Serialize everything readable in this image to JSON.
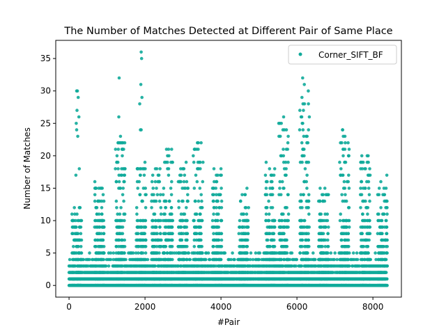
{
  "chart_data": {
    "type": "scatter",
    "title": "The Number of Matches Detected at Different Pair of Same Place",
    "xlabel": "#Pair",
    "ylabel": "Number of Matches",
    "xlim": [
      -350,
      8750
    ],
    "ylim": [
      -1.8,
      37.8
    ],
    "xticks": [
      0,
      2000,
      4000,
      6000,
      8000
    ],
    "yticks": [
      0,
      5,
      10,
      15,
      20,
      25,
      30,
      35
    ],
    "grid": false,
    "legend_position": "top-right",
    "point_count_note_visible": false,
    "series": [
      {
        "name": "Corner_SIFT_BF",
        "color": "#10aa9a",
        "x_range": [
          0,
          8350
        ],
        "dense_values": [
          0,
          1,
          2,
          3
        ],
        "cluster_centers": [
          {
            "x": 200,
            "max": 12
          },
          {
            "x": 800,
            "max": 16
          },
          {
            "x": 1350,
            "max": 23
          },
          {
            "x": 1900,
            "max": 19
          },
          {
            "x": 2300,
            "max": 19
          },
          {
            "x": 2600,
            "max": 21
          },
          {
            "x": 3000,
            "max": 19
          },
          {
            "x": 3400,
            "max": 22
          },
          {
            "x": 3900,
            "max": 18
          },
          {
            "x": 4600,
            "max": 15
          },
          {
            "x": 5300,
            "max": 19
          },
          {
            "x": 5650,
            "max": 26
          },
          {
            "x": 6200,
            "max": 32
          },
          {
            "x": 6700,
            "max": 15
          },
          {
            "x": 7250,
            "max": 24
          },
          {
            "x": 7800,
            "max": 20
          },
          {
            "x": 8250,
            "max": 17
          }
        ],
        "outliers": [
          {
            "x": 200,
            "y": 30
          },
          {
            "x": 220,
            "y": 30
          },
          {
            "x": 240,
            "y": 29
          },
          {
            "x": 210,
            "y": 27
          },
          {
            "x": 190,
            "y": 25
          },
          {
            "x": 200,
            "y": 24
          },
          {
            "x": 230,
            "y": 23
          },
          {
            "x": 260,
            "y": 26
          },
          {
            "x": 270,
            "y": 18
          },
          {
            "x": 180,
            "y": 17
          },
          {
            "x": 1320,
            "y": 32
          },
          {
            "x": 1310,
            "y": 26
          },
          {
            "x": 1380,
            "y": 22
          },
          {
            "x": 1860,
            "y": 28
          },
          {
            "x": 1880,
            "y": 24
          },
          {
            "x": 1900,
            "y": 24
          },
          {
            "x": 1890,
            "y": 31
          },
          {
            "x": 1920,
            "y": 29
          },
          {
            "x": 1900,
            "y": 36
          },
          {
            "x": 1910,
            "y": 35
          },
          {
            "x": 2620,
            "y": 21
          },
          {
            "x": 3380,
            "y": 22
          },
          {
            "x": 3400,
            "y": 21
          },
          {
            "x": 5650,
            "y": 26
          },
          {
            "x": 6150,
            "y": 32
          },
          {
            "x": 6160,
            "y": 28
          },
          {
            "x": 6170,
            "y": 27
          },
          {
            "x": 6140,
            "y": 25
          },
          {
            "x": 6130,
            "y": 22
          },
          {
            "x": 6180,
            "y": 23
          },
          {
            "x": 7200,
            "y": 24
          },
          {
            "x": 7220,
            "y": 23
          },
          {
            "x": 7180,
            "y": 22
          },
          {
            "x": 7850,
            "y": 20
          }
        ]
      }
    ]
  }
}
